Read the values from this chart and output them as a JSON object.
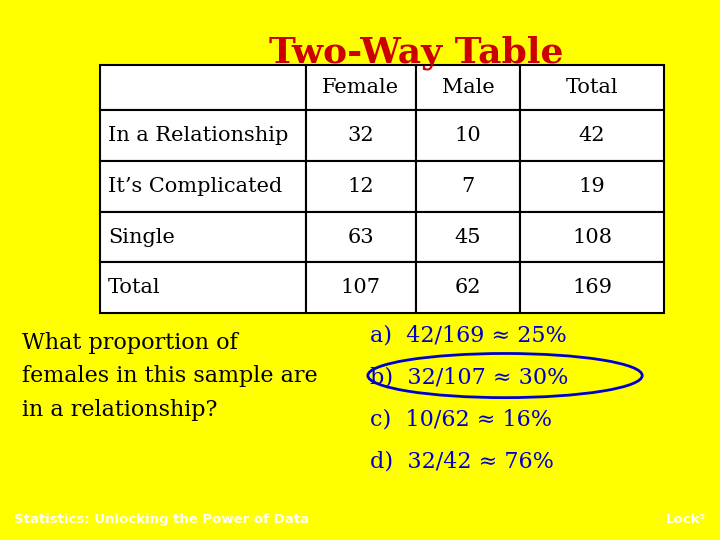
{
  "title": "Two-Way Table",
  "title_color": "#cc0000",
  "background_color": "#ffffff",
  "border_color": "#ffff00",
  "table_data": [
    [
      "",
      "Female",
      "Male",
      "Total"
    ],
    [
      "In a Relationship",
      "32",
      "10",
      "42"
    ],
    [
      "It’s Complicated",
      "12",
      "7",
      "19"
    ],
    [
      "Single",
      "63",
      "45",
      "108"
    ],
    [
      "Total",
      "107",
      "62",
      "169"
    ]
  ],
  "question_text": "What proportion of\nfemales in this sample are\nin a relationship?",
  "question_color": "#000000",
  "answers": [
    [
      "a)",
      "42/169 ≈ 25%"
    ],
    [
      "b)",
      "32/107 ≈ 30%"
    ],
    [
      "c)",
      "10/62 ≈ 16%"
    ],
    [
      "d)",
      "32/42 ≈ 76%"
    ]
  ],
  "answer_color": "#0000cc",
  "circled_answer_index": 1,
  "footer_left": "Statistics: Unlocking the Power of Data",
  "footer_right": "Lock⁵",
  "footer_bg": "#cc0000",
  "footer_text_color": "#ffffff"
}
